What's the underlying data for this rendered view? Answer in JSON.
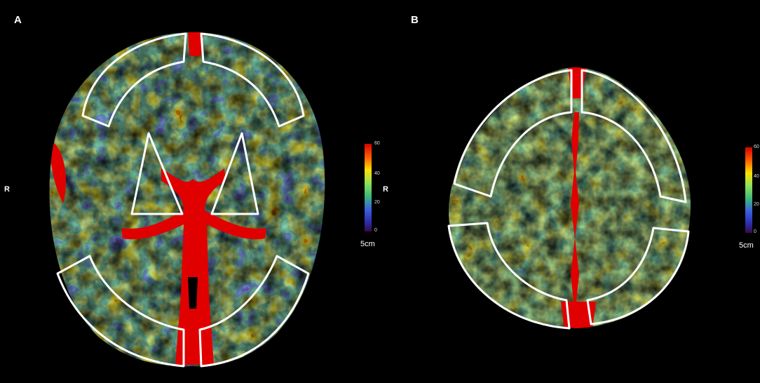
{
  "panels": [
    {
      "letter": "A",
      "side_label": "R",
      "colorbar": {
        "max": "60",
        "ticks": [
          "40",
          "20",
          "0"
        ],
        "scale": "5cm"
      }
    },
    {
      "letter": "B",
      "side_label": "R",
      "colorbar": {
        "max": "60",
        "ticks": [
          "40",
          "20",
          "0"
        ],
        "scale": "5cm"
      }
    }
  ],
  "colormap": [
    "#d80000",
    "#ff3b00",
    "#ffd400",
    "#a8e84a",
    "#3cb97a",
    "#3c5ee0",
    "#2b2ba8",
    "#3a0a45"
  ]
}
